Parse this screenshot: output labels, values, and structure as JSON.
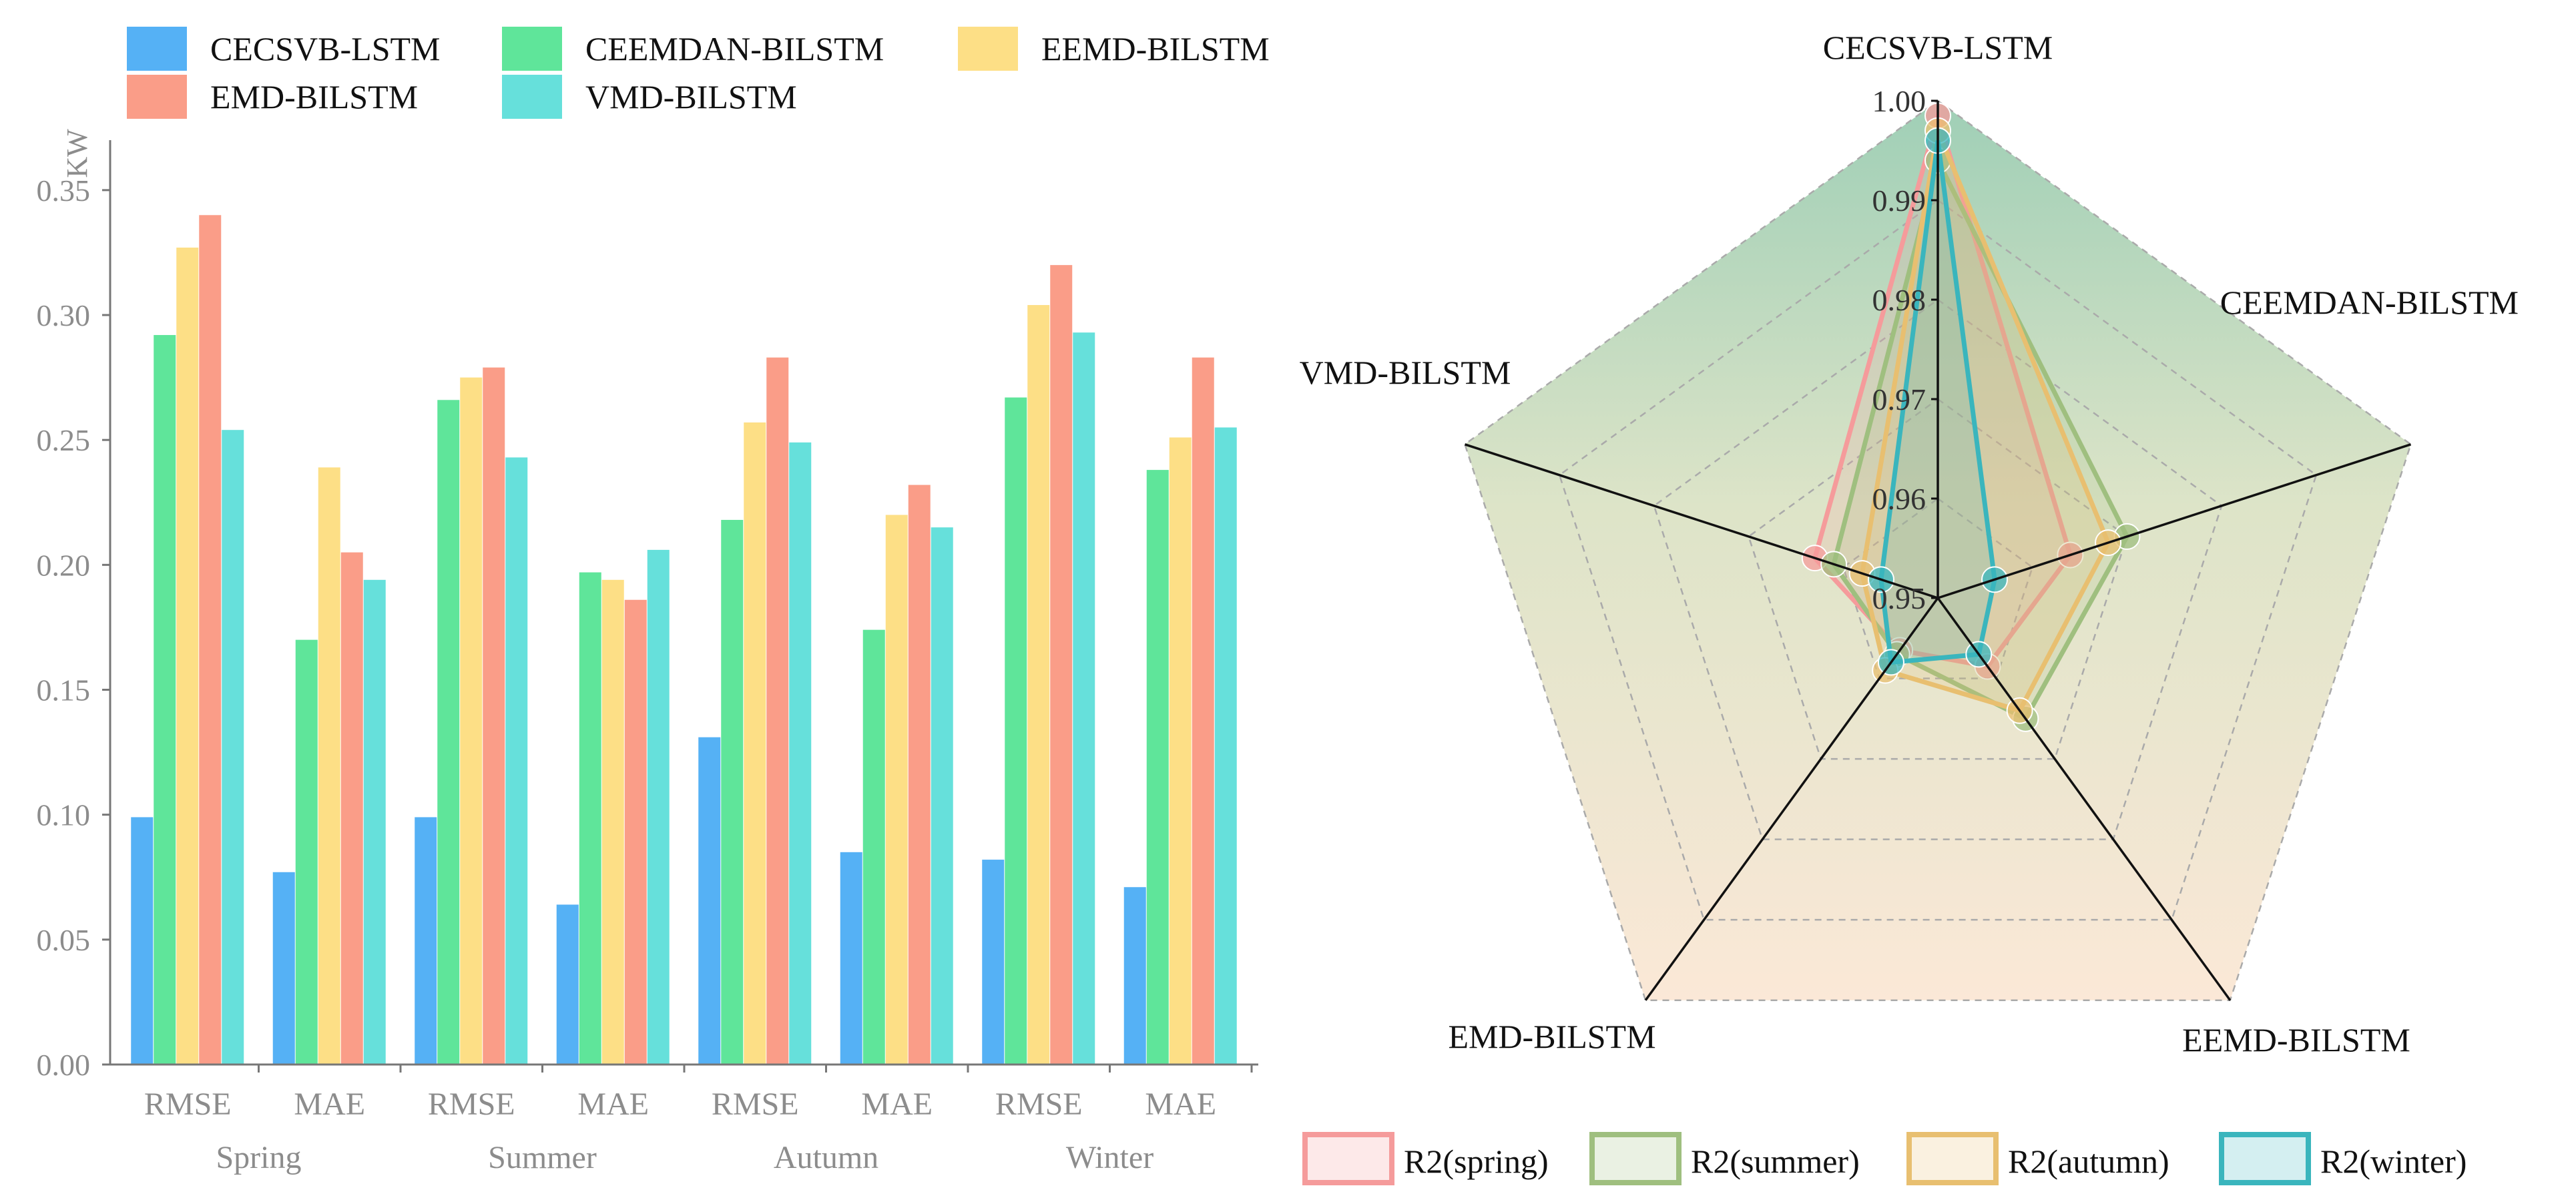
{
  "colors": {
    "CECSVB-LSTM": "#55b1f5",
    "CEEMDAN-BILSTM": "#5fe59a",
    "EEMD-BILSTM": "#fddf86",
    "EMD-BILSTM": "#fa9d88",
    "VMD-BILSTM": "#66e0db",
    "radar_spring": "#f59b9b",
    "radar_summer": "#9fbf7f",
    "radar_autumn": "#e8bf70",
    "radar_winter": "#3ab5bd",
    "axis": "#777777",
    "grid": "#aaaaaa",
    "radar_axis": "#111111"
  },
  "chart_data": [
    {
      "type": "bar",
      "title": "",
      "ylabel": "KW",
      "xlabel": "",
      "ylim": [
        0,
        0.37
      ],
      "yticks": [
        "0.00",
        "0.05",
        "0.10",
        "0.15",
        "0.20",
        "0.25",
        "0.30",
        "0.35"
      ],
      "categories": [
        "RMSE",
        "MAE",
        "RMSE",
        "MAE",
        "RMSE",
        "MAE",
        "RMSE",
        "MAE"
      ],
      "groups": [
        "Spring",
        "Summer",
        "Autumn",
        "Winter"
      ],
      "legend": [
        "CECSVB-LSTM",
        "EMD-BILSTM",
        "CEEMDAN-BILSTM",
        "VMD-BILSTM",
        "EEMD-BILSTM"
      ],
      "series": [
        {
          "name": "CECSVB-LSTM",
          "values": [
            0.099,
            0.077,
            0.099,
            0.064,
            0.131,
            0.085,
            0.082,
            0.071
          ]
        },
        {
          "name": "CEEMDAN-BILSTM",
          "values": [
            0.292,
            0.17,
            0.266,
            0.197,
            0.218,
            0.174,
            0.267,
            0.238
          ]
        },
        {
          "name": "EEMD-BILSTM",
          "values": [
            0.327,
            0.239,
            0.275,
            0.194,
            0.257,
            0.22,
            0.304,
            0.251
          ]
        },
        {
          "name": "EMD-BILSTM",
          "values": [
            0.34,
            0.205,
            0.279,
            0.186,
            0.283,
            0.232,
            0.32,
            0.283
          ]
        },
        {
          "name": "VMD-BILSTM",
          "values": [
            0.254,
            0.194,
            0.243,
            0.206,
            0.249,
            0.215,
            0.293,
            0.255
          ]
        }
      ]
    },
    {
      "type": "radar",
      "title": "",
      "axes": [
        "CECSVB-LSTM",
        "CEEMDAN-BILSTM",
        "EEMD-BILSTM",
        "EMD-BILSTM",
        "VMD-BILSTM"
      ],
      "rlim": [
        0.95,
        1.0
      ],
      "rticks": [
        "0.95",
        "0.96",
        "0.97",
        "0.98",
        "0.99",
        "1.00"
      ],
      "series": [
        {
          "name": "R2(spring)",
          "values": [
            0.9985,
            0.964,
            0.9585,
            0.9565,
            0.963
          ]
        },
        {
          "name": "R2(summer)",
          "values": [
            0.994,
            0.97,
            0.965,
            0.957,
            0.961
          ]
        },
        {
          "name": "R2(autumn)",
          "values": [
            0.997,
            0.968,
            0.964,
            0.959,
            0.958
          ]
        },
        {
          "name": "R2(winter)",
          "values": [
            0.996,
            0.956,
            0.957,
            0.958,
            0.956
          ]
        }
      ]
    }
  ]
}
